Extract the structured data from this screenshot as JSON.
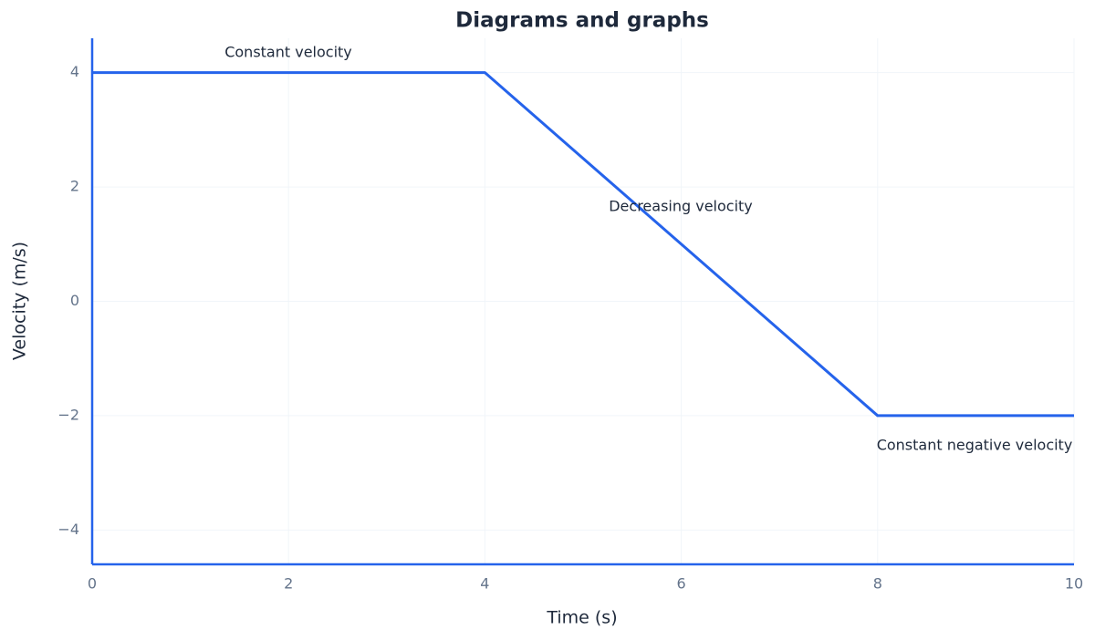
{
  "chart_data": {
    "type": "line",
    "title": "Diagrams and graphs",
    "x_label": "Time (s)",
    "y_label": "Velocity (m/s)",
    "x": [
      0,
      4,
      8,
      10
    ],
    "values": [
      4,
      4,
      -2,
      -2
    ],
    "color": "#2563eb",
    "xlim": [
      0,
      10
    ],
    "xticks": [
      0,
      2,
      4,
      6,
      8,
      10
    ],
    "ylim": [
      -4.6,
      4.6
    ],
    "yticks": [
      {
        "value": -4,
        "label": "−4"
      },
      {
        "value": -2,
        "label": "−2"
      },
      0,
      2,
      4
    ],
    "grid": true,
    "annotations": [
      "Constant velocity",
      "Decreasing velocity",
      "Constant negative velocity"
    ]
  }
}
